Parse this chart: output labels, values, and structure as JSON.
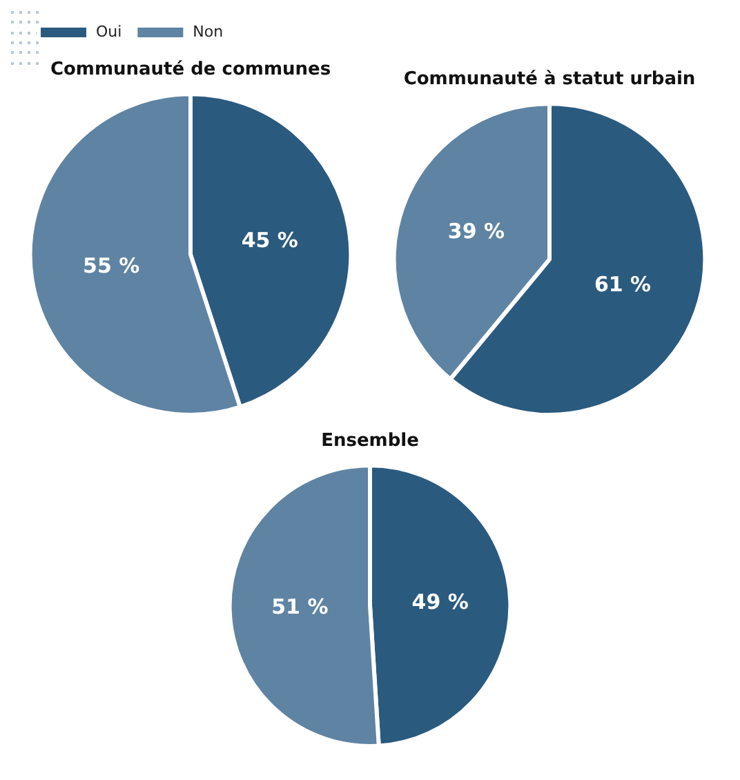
{
  "chart_data": [
    {
      "type": "pie",
      "title": "Communauté de communes",
      "categories": [
        "Oui",
        "Non"
      ],
      "values": [
        45,
        55
      ],
      "colors": [
        "#2b5a7f",
        "#5f83a3"
      ],
      "value_labels": [
        "45 %",
        "55 %"
      ],
      "legend": "top left"
    },
    {
      "type": "pie",
      "title": "Communauté à statut urbain",
      "categories": [
        null,
        null
      ],
      "values": [
        61,
        39
      ],
      "colors": [
        "#2b5a7f",
        "#5f83a3"
      ],
      "value_labels": [
        "61 %",
        "39 %"
      ]
    },
    {
      "type": "pie",
      "title": "Ensemble",
      "categories": [
        null,
        null
      ],
      "values": [
        49,
        51
      ],
      "colors": [
        "#2b5a7f",
        "#5f83a3"
      ],
      "value_labels": [
        "49 %",
        "51 %"
      ]
    }
  ]
}
